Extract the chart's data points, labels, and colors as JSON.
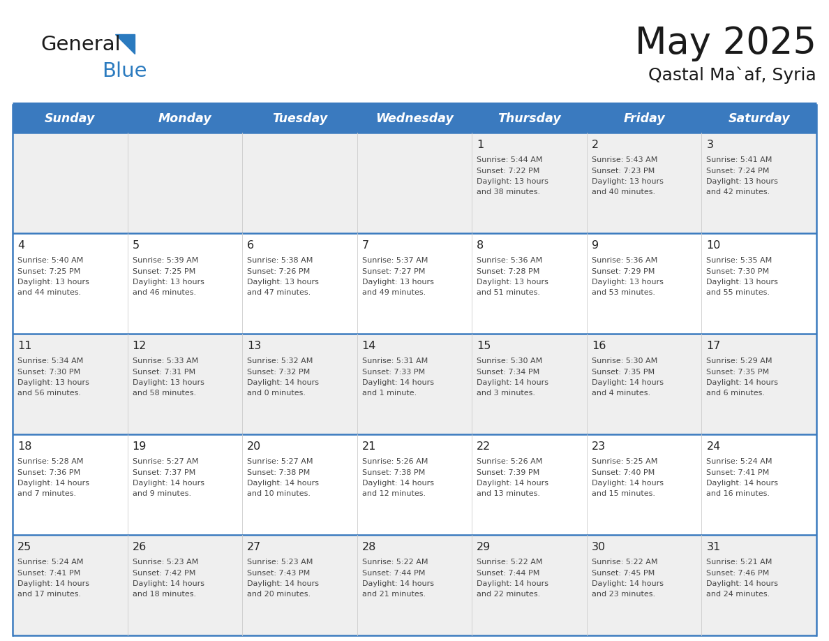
{
  "title": "May 2025",
  "subtitle": "Qastal Ma`af, Syria",
  "header_bg": "#3a7abf",
  "header_text_color": "#ffffff",
  "days_of_week": [
    "Sunday",
    "Monday",
    "Tuesday",
    "Wednesday",
    "Thursday",
    "Friday",
    "Saturday"
  ],
  "row_bg_even": "#efefef",
  "row_bg_odd": "#ffffff",
  "cell_text_color": "#444444",
  "day_num_color": "#222222",
  "grid_line_color": "#3a7abf",
  "separator_color": "#3a7abf",
  "weeks": [
    {
      "days": [
        {
          "day": "",
          "info": ""
        },
        {
          "day": "",
          "info": ""
        },
        {
          "day": "",
          "info": ""
        },
        {
          "day": "",
          "info": ""
        },
        {
          "day": "1",
          "info": "Sunrise: 5:44 AM\nSunset: 7:22 PM\nDaylight: 13 hours\nand 38 minutes."
        },
        {
          "day": "2",
          "info": "Sunrise: 5:43 AM\nSunset: 7:23 PM\nDaylight: 13 hours\nand 40 minutes."
        },
        {
          "day": "3",
          "info": "Sunrise: 5:41 AM\nSunset: 7:24 PM\nDaylight: 13 hours\nand 42 minutes."
        }
      ]
    },
    {
      "days": [
        {
          "day": "4",
          "info": "Sunrise: 5:40 AM\nSunset: 7:25 PM\nDaylight: 13 hours\nand 44 minutes."
        },
        {
          "day": "5",
          "info": "Sunrise: 5:39 AM\nSunset: 7:25 PM\nDaylight: 13 hours\nand 46 minutes."
        },
        {
          "day": "6",
          "info": "Sunrise: 5:38 AM\nSunset: 7:26 PM\nDaylight: 13 hours\nand 47 minutes."
        },
        {
          "day": "7",
          "info": "Sunrise: 5:37 AM\nSunset: 7:27 PM\nDaylight: 13 hours\nand 49 minutes."
        },
        {
          "day": "8",
          "info": "Sunrise: 5:36 AM\nSunset: 7:28 PM\nDaylight: 13 hours\nand 51 minutes."
        },
        {
          "day": "9",
          "info": "Sunrise: 5:36 AM\nSunset: 7:29 PM\nDaylight: 13 hours\nand 53 minutes."
        },
        {
          "day": "10",
          "info": "Sunrise: 5:35 AM\nSunset: 7:30 PM\nDaylight: 13 hours\nand 55 minutes."
        }
      ]
    },
    {
      "days": [
        {
          "day": "11",
          "info": "Sunrise: 5:34 AM\nSunset: 7:30 PM\nDaylight: 13 hours\nand 56 minutes."
        },
        {
          "day": "12",
          "info": "Sunrise: 5:33 AM\nSunset: 7:31 PM\nDaylight: 13 hours\nand 58 minutes."
        },
        {
          "day": "13",
          "info": "Sunrise: 5:32 AM\nSunset: 7:32 PM\nDaylight: 14 hours\nand 0 minutes."
        },
        {
          "day": "14",
          "info": "Sunrise: 5:31 AM\nSunset: 7:33 PM\nDaylight: 14 hours\nand 1 minute."
        },
        {
          "day": "15",
          "info": "Sunrise: 5:30 AM\nSunset: 7:34 PM\nDaylight: 14 hours\nand 3 minutes."
        },
        {
          "day": "16",
          "info": "Sunrise: 5:30 AM\nSunset: 7:35 PM\nDaylight: 14 hours\nand 4 minutes."
        },
        {
          "day": "17",
          "info": "Sunrise: 5:29 AM\nSunset: 7:35 PM\nDaylight: 14 hours\nand 6 minutes."
        }
      ]
    },
    {
      "days": [
        {
          "day": "18",
          "info": "Sunrise: 5:28 AM\nSunset: 7:36 PM\nDaylight: 14 hours\nand 7 minutes."
        },
        {
          "day": "19",
          "info": "Sunrise: 5:27 AM\nSunset: 7:37 PM\nDaylight: 14 hours\nand 9 minutes."
        },
        {
          "day": "20",
          "info": "Sunrise: 5:27 AM\nSunset: 7:38 PM\nDaylight: 14 hours\nand 10 minutes."
        },
        {
          "day": "21",
          "info": "Sunrise: 5:26 AM\nSunset: 7:38 PM\nDaylight: 14 hours\nand 12 minutes."
        },
        {
          "day": "22",
          "info": "Sunrise: 5:26 AM\nSunset: 7:39 PM\nDaylight: 14 hours\nand 13 minutes."
        },
        {
          "day": "23",
          "info": "Sunrise: 5:25 AM\nSunset: 7:40 PM\nDaylight: 14 hours\nand 15 minutes."
        },
        {
          "day": "24",
          "info": "Sunrise: 5:24 AM\nSunset: 7:41 PM\nDaylight: 14 hours\nand 16 minutes."
        }
      ]
    },
    {
      "days": [
        {
          "day": "25",
          "info": "Sunrise: 5:24 AM\nSunset: 7:41 PM\nDaylight: 14 hours\nand 17 minutes."
        },
        {
          "day": "26",
          "info": "Sunrise: 5:23 AM\nSunset: 7:42 PM\nDaylight: 14 hours\nand 18 minutes."
        },
        {
          "day": "27",
          "info": "Sunrise: 5:23 AM\nSunset: 7:43 PM\nDaylight: 14 hours\nand 20 minutes."
        },
        {
          "day": "28",
          "info": "Sunrise: 5:22 AM\nSunset: 7:44 PM\nDaylight: 14 hours\nand 21 minutes."
        },
        {
          "day": "29",
          "info": "Sunrise: 5:22 AM\nSunset: 7:44 PM\nDaylight: 14 hours\nand 22 minutes."
        },
        {
          "day": "30",
          "info": "Sunrise: 5:22 AM\nSunset: 7:45 PM\nDaylight: 14 hours\nand 23 minutes."
        },
        {
          "day": "31",
          "info": "Sunrise: 5:21 AM\nSunset: 7:46 PM\nDaylight: 14 hours\nand 24 minutes."
        }
      ]
    }
  ],
  "logo_general_color": "#1a1a1a",
  "logo_blue_color": "#2a7abf",
  "logo_triangle_color": "#2a7abf",
  "fig_width": 11.88,
  "fig_height": 9.18,
  "dpi": 100
}
